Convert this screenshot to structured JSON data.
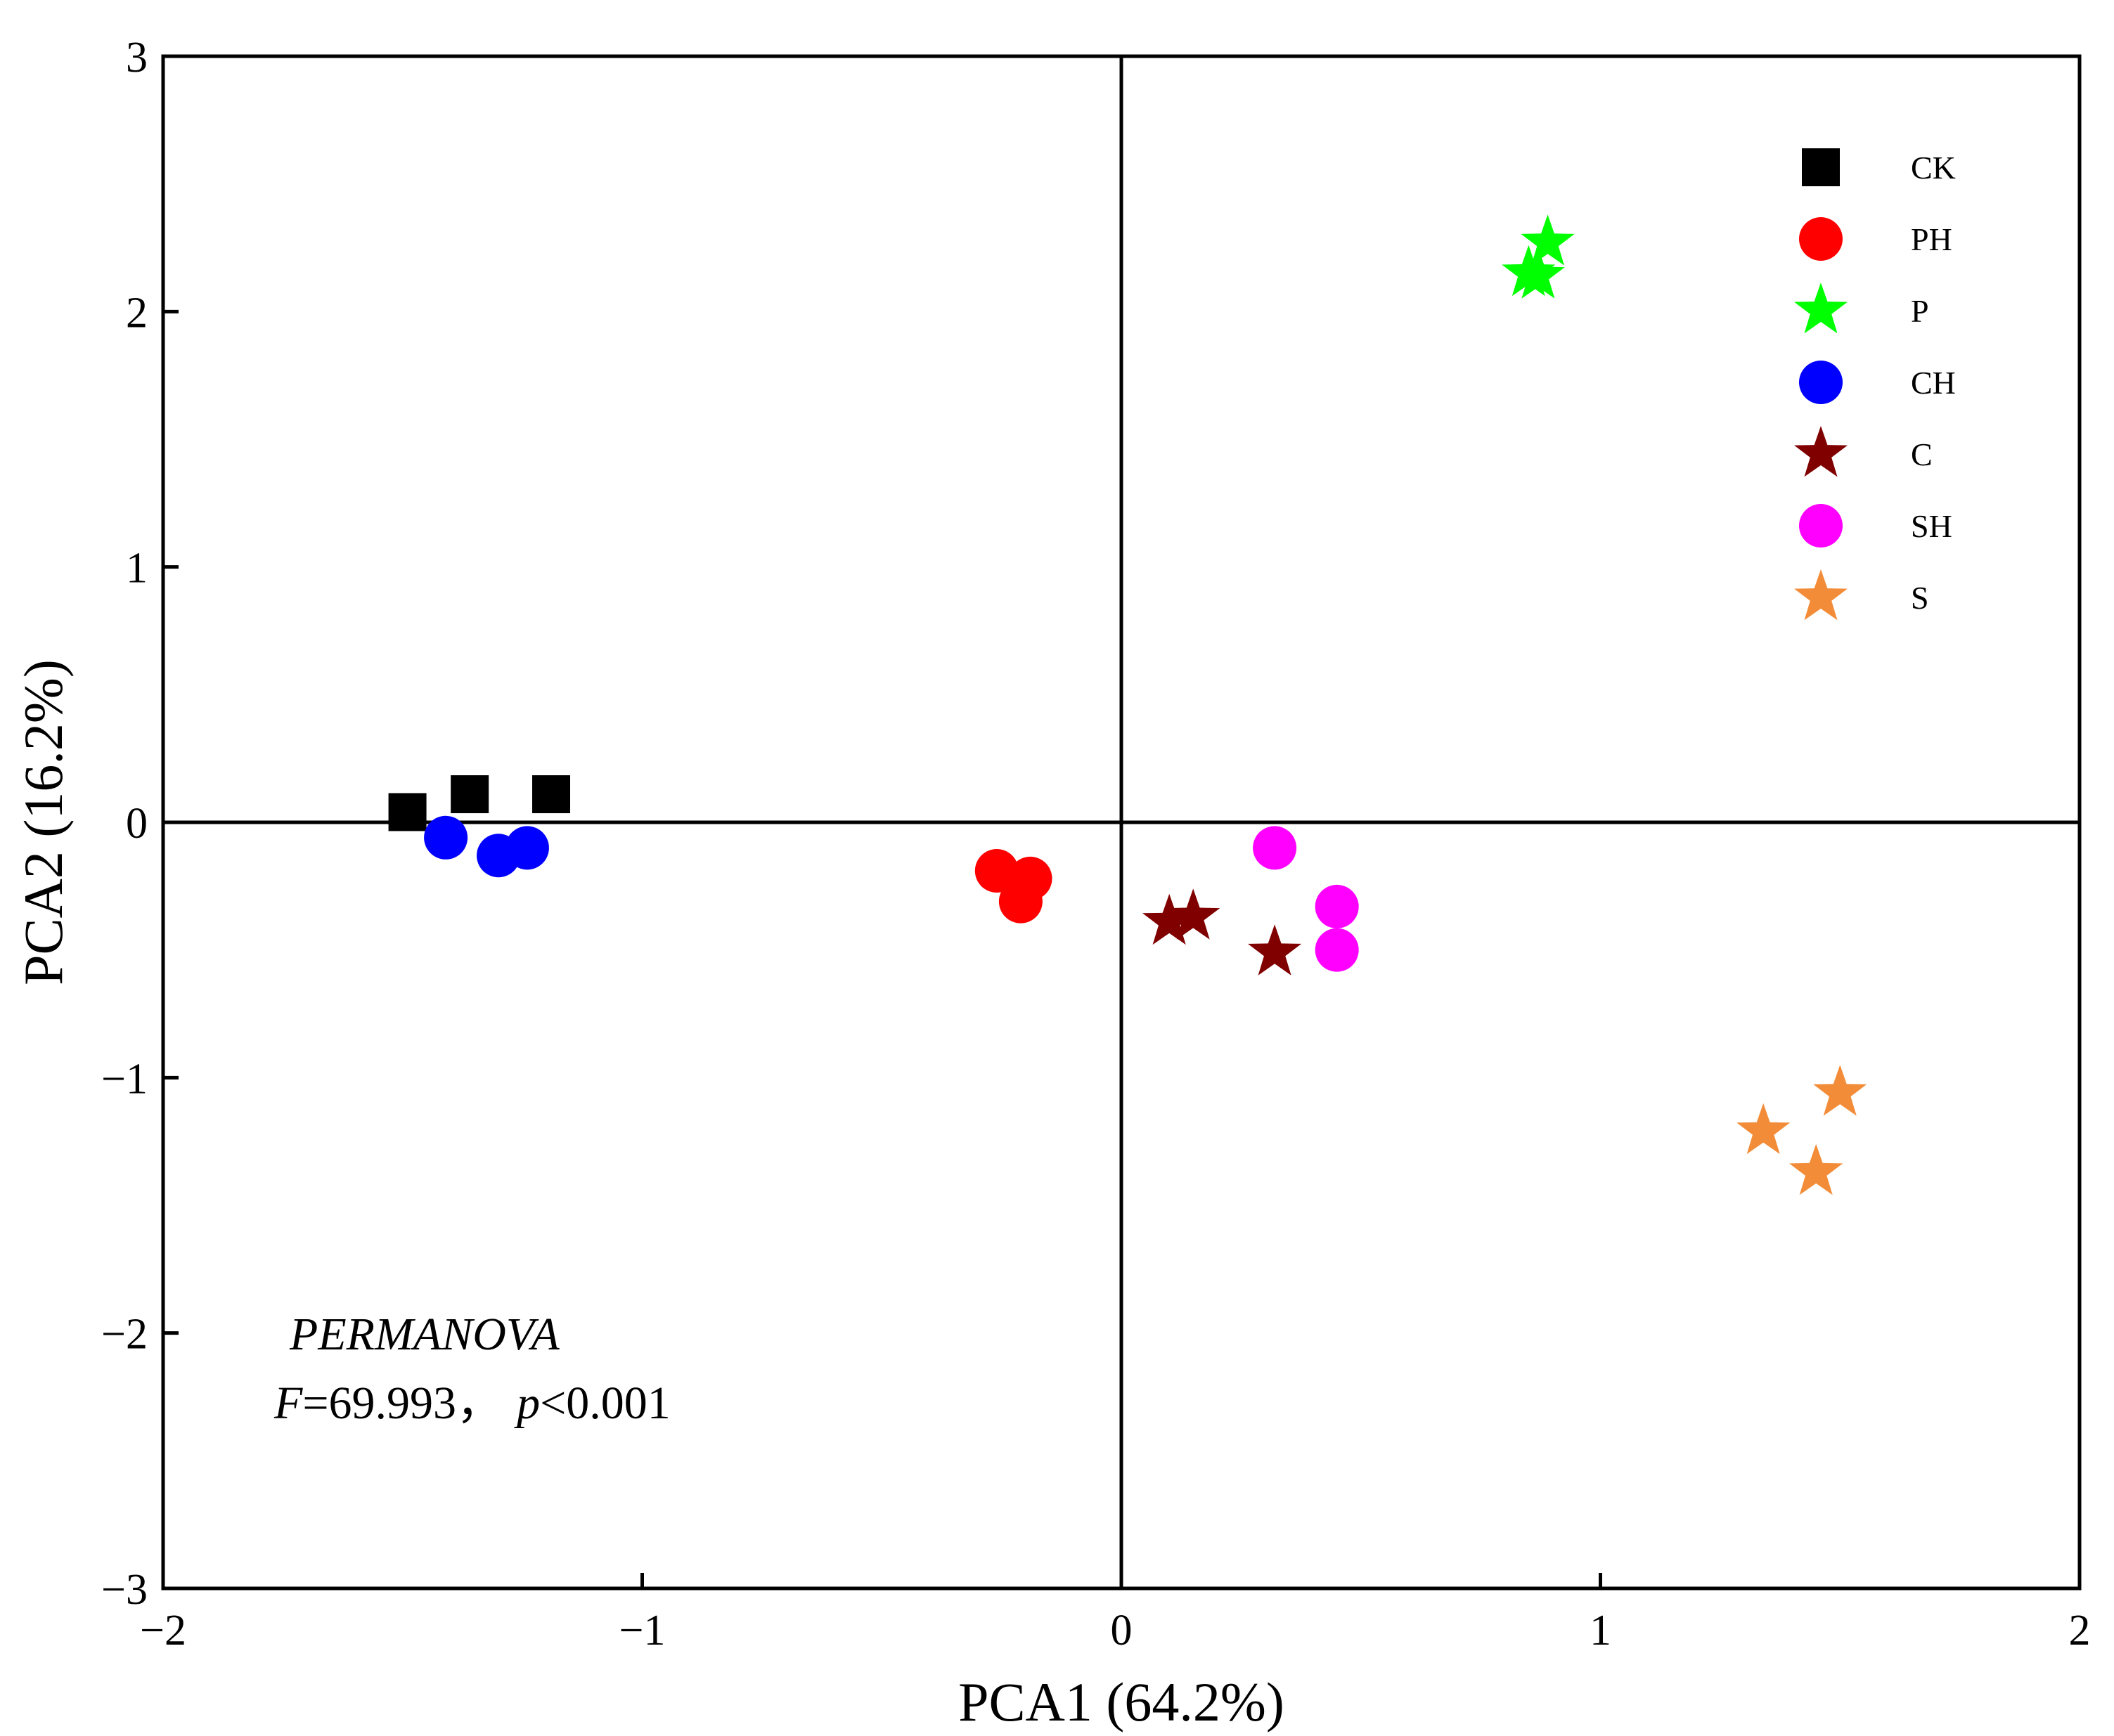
{
  "chart_data": {
    "type": "scatter",
    "title": "",
    "xlabel": "PCA1 (64.2%)",
    "ylabel": "PCA2 (16.2%)",
    "xlim": [
      -2,
      2
    ],
    "ylim": [
      -3,
      3
    ],
    "x_ticks": [
      -2,
      -1,
      0,
      1,
      2
    ],
    "x_tick_labels": [
      "−2",
      "−1",
      "0",
      "1",
      "2"
    ],
    "y_ticks": [
      -3,
      -2,
      -1,
      0,
      1,
      2,
      3
    ],
    "y_tick_labels": [
      "−3",
      "−2",
      "−1",
      "0",
      "1",
      "2",
      "3"
    ],
    "grid": false,
    "reference_lines": {
      "x": 0,
      "y": 0
    },
    "legend_position": "top-right",
    "series": [
      {
        "name": "CK",
        "marker": "square",
        "color": "#000000",
        "points": [
          [
            -1.49,
            0.04
          ],
          [
            -1.36,
            0.11
          ],
          [
            -1.19,
            0.11
          ]
        ]
      },
      {
        "name": "PH",
        "marker": "circle",
        "color": "#ff0000",
        "points": [
          [
            -0.26,
            -0.19
          ],
          [
            -0.19,
            -0.22
          ],
          [
            -0.21,
            -0.31
          ]
        ]
      },
      {
        "name": "P",
        "marker": "star",
        "color": "#00ff00",
        "points": [
          [
            0.89,
            2.27
          ],
          [
            0.85,
            2.15
          ],
          [
            0.87,
            2.14
          ]
        ]
      },
      {
        "name": "CH",
        "marker": "circle",
        "color": "#0000ff",
        "points": [
          [
            -1.41,
            -0.06
          ],
          [
            -1.3,
            -0.13
          ],
          [
            -1.24,
            -0.1
          ]
        ]
      },
      {
        "name": "C",
        "marker": "star",
        "color": "#800000",
        "points": [
          [
            0.1,
            -0.39
          ],
          [
            0.15,
            -0.37
          ],
          [
            0.32,
            -0.51
          ]
        ]
      },
      {
        "name": "SH",
        "marker": "circle",
        "color": "#ff00ff",
        "points": [
          [
            0.32,
            -0.1
          ],
          [
            0.45,
            -0.33
          ],
          [
            0.45,
            -0.5
          ]
        ]
      },
      {
        "name": "S",
        "marker": "star",
        "color": "#f28c38",
        "points": [
          [
            1.5,
            -1.06
          ],
          [
            1.34,
            -1.21
          ],
          [
            1.45,
            -1.37
          ]
        ]
      }
    ],
    "annotations": {
      "method": "PERMANOVA",
      "f_label": "F",
      "f_value": "=69.993，",
      "p_label": "p",
      "p_value": "<0.001"
    }
  }
}
